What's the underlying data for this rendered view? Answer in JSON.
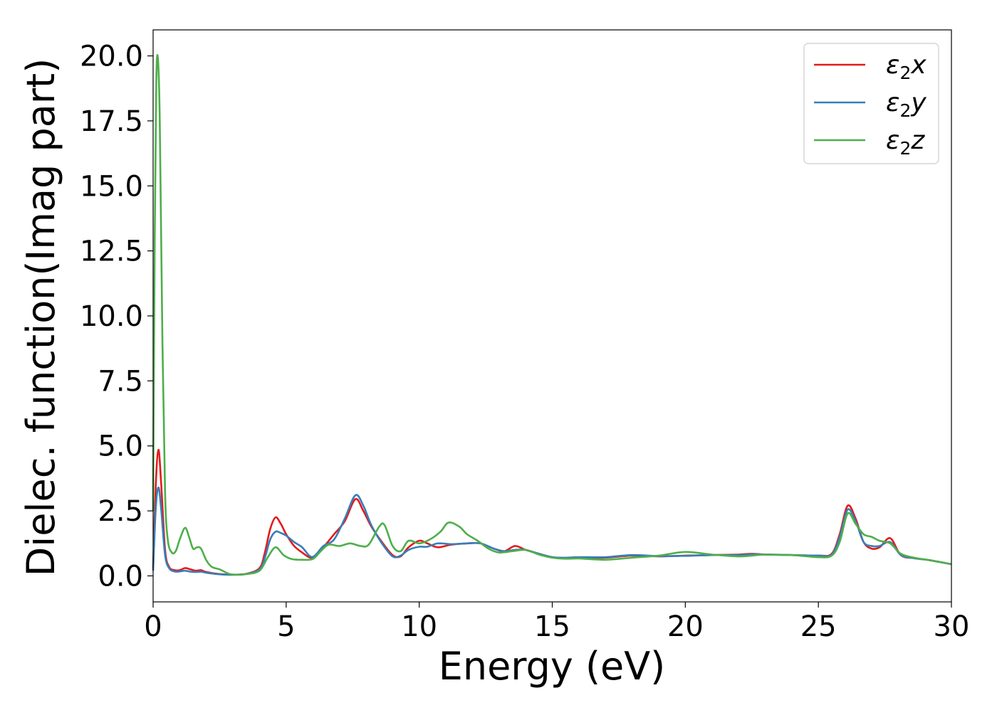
{
  "chart_data": {
    "type": "line",
    "title": "",
    "xlabel": "Energy (eV)",
    "ylabel": "Dielec. function(Imag part)",
    "xlim": [
      0,
      30
    ],
    "ylim": [
      -1.0,
      21.0
    ],
    "xticks": [
      0,
      5,
      10,
      15,
      20,
      25,
      30
    ],
    "xtick_labels": [
      "0",
      "5",
      "10",
      "15",
      "20",
      "25",
      "30"
    ],
    "yticks": [
      0.0,
      2.5,
      5.0,
      7.5,
      10.0,
      12.5,
      15.0,
      17.5,
      20.0
    ],
    "ytick_labels": [
      "0.0",
      "2.5",
      "5.0",
      "7.5",
      "10.0",
      "12.5",
      "15.0",
      "17.5",
      "20.0"
    ],
    "grid": false,
    "legend_position": "top-right",
    "series": [
      {
        "name": "ε₂x",
        "legend_base": "ε",
        "legend_sub": "2",
        "legend_suffix": "x",
        "color": "#e41a1c",
        "points": [
          [
            0,
            0.3
          ],
          [
            0.1,
            3.5
          ],
          [
            0.2,
            4.85
          ],
          [
            0.3,
            3.6
          ],
          [
            0.45,
            1.0
          ],
          [
            0.6,
            0.35
          ],
          [
            0.8,
            0.22
          ],
          [
            1.0,
            0.22
          ],
          [
            1.2,
            0.3
          ],
          [
            1.4,
            0.25
          ],
          [
            1.6,
            0.2
          ],
          [
            1.8,
            0.22
          ],
          [
            2.0,
            0.15
          ],
          [
            2.5,
            0.07
          ],
          [
            3.0,
            0.05
          ],
          [
            3.5,
            0.08
          ],
          [
            4.0,
            0.3
          ],
          [
            4.2,
            0.9
          ],
          [
            4.4,
            1.8
          ],
          [
            4.6,
            2.25
          ],
          [
            4.8,
            2.0
          ],
          [
            5.0,
            1.6
          ],
          [
            5.3,
            1.15
          ],
          [
            5.6,
            0.9
          ],
          [
            5.9,
            0.7
          ],
          [
            6.1,
            0.75
          ],
          [
            6.4,
            1.1
          ],
          [
            6.8,
            1.6
          ],
          [
            7.2,
            2.1
          ],
          [
            7.6,
            2.95
          ],
          [
            7.9,
            2.5
          ],
          [
            8.2,
            1.9
          ],
          [
            8.6,
            1.3
          ],
          [
            9.0,
            0.8
          ],
          [
            9.3,
            0.75
          ],
          [
            9.6,
            1.1
          ],
          [
            10.0,
            1.35
          ],
          [
            10.3,
            1.25
          ],
          [
            10.7,
            1.1
          ],
          [
            11.2,
            1.2
          ],
          [
            11.8,
            1.25
          ],
          [
            12.3,
            1.25
          ],
          [
            12.8,
            1.05
          ],
          [
            13.2,
            0.95
          ],
          [
            13.6,
            1.15
          ],
          [
            14.0,
            1.0
          ],
          [
            14.5,
            0.85
          ],
          [
            15.0,
            0.72
          ],
          [
            15.5,
            0.68
          ],
          [
            16.0,
            0.7
          ],
          [
            17.0,
            0.7
          ],
          [
            18.0,
            0.78
          ],
          [
            19.0,
            0.75
          ],
          [
            20.0,
            0.78
          ],
          [
            21.0,
            0.8
          ],
          [
            22.0,
            0.82
          ],
          [
            22.5,
            0.85
          ],
          [
            23.0,
            0.82
          ],
          [
            24.0,
            0.8
          ],
          [
            25.0,
            0.78
          ],
          [
            25.5,
            0.85
          ],
          [
            25.8,
            1.6
          ],
          [
            26.1,
            2.7
          ],
          [
            26.4,
            2.2
          ],
          [
            26.7,
            1.3
          ],
          [
            27.0,
            1.05
          ],
          [
            27.3,
            1.1
          ],
          [
            27.7,
            1.45
          ],
          [
            28.1,
            0.8
          ],
          [
            28.6,
            0.68
          ],
          [
            29.2,
            0.6
          ],
          [
            30.0,
            0.45
          ]
        ]
      },
      {
        "name": "ε₂y",
        "legend_base": "ε",
        "legend_sub": "2",
        "legend_suffix": "y",
        "color": "#377eb8",
        "points": [
          [
            0,
            0.2
          ],
          [
            0.1,
            2.6
          ],
          [
            0.2,
            3.4
          ],
          [
            0.3,
            2.6
          ],
          [
            0.45,
            0.8
          ],
          [
            0.6,
            0.3
          ],
          [
            0.8,
            0.17
          ],
          [
            1.0,
            0.17
          ],
          [
            1.2,
            0.2
          ],
          [
            1.4,
            0.16
          ],
          [
            1.6,
            0.15
          ],
          [
            1.8,
            0.16
          ],
          [
            2.0,
            0.12
          ],
          [
            2.5,
            0.06
          ],
          [
            3.0,
            0.04
          ],
          [
            3.5,
            0.07
          ],
          [
            4.0,
            0.25
          ],
          [
            4.2,
            0.7
          ],
          [
            4.4,
            1.4
          ],
          [
            4.6,
            1.7
          ],
          [
            4.8,
            1.65
          ],
          [
            5.0,
            1.55
          ],
          [
            5.3,
            1.3
          ],
          [
            5.6,
            1.1
          ],
          [
            5.9,
            0.75
          ],
          [
            6.1,
            0.8
          ],
          [
            6.4,
            1.15
          ],
          [
            6.8,
            1.4
          ],
          [
            7.2,
            2.2
          ],
          [
            7.6,
            3.1
          ],
          [
            7.9,
            2.7
          ],
          [
            8.2,
            1.95
          ],
          [
            8.6,
            1.25
          ],
          [
            9.0,
            0.75
          ],
          [
            9.3,
            0.78
          ],
          [
            9.6,
            1.0
          ],
          [
            10.0,
            1.12
          ],
          [
            10.3,
            1.12
          ],
          [
            10.7,
            1.25
          ],
          [
            11.2,
            1.22
          ],
          [
            11.8,
            1.25
          ],
          [
            12.3,
            1.25
          ],
          [
            12.8,
            1.05
          ],
          [
            13.2,
            0.95
          ],
          [
            13.6,
            1.0
          ],
          [
            14.0,
            1.0
          ],
          [
            14.5,
            0.85
          ],
          [
            15.0,
            0.72
          ],
          [
            15.5,
            0.7
          ],
          [
            16.0,
            0.72
          ],
          [
            17.0,
            0.72
          ],
          [
            18.0,
            0.8
          ],
          [
            19.0,
            0.76
          ],
          [
            20.0,
            0.77
          ],
          [
            21.0,
            0.8
          ],
          [
            22.0,
            0.8
          ],
          [
            22.5,
            0.83
          ],
          [
            23.0,
            0.82
          ],
          [
            24.0,
            0.8
          ],
          [
            25.0,
            0.78
          ],
          [
            25.5,
            0.82
          ],
          [
            25.8,
            1.5
          ],
          [
            26.1,
            2.55
          ],
          [
            26.4,
            2.1
          ],
          [
            26.7,
            1.3
          ],
          [
            27.0,
            1.15
          ],
          [
            27.3,
            1.15
          ],
          [
            27.7,
            1.3
          ],
          [
            28.1,
            0.8
          ],
          [
            28.6,
            0.68
          ],
          [
            29.2,
            0.6
          ],
          [
            30.0,
            0.45
          ]
        ]
      },
      {
        "name": "ε₂z",
        "legend_base": "ε",
        "legend_sub": "2",
        "legend_suffix": "z",
        "color": "#4daf4a",
        "points": [
          [
            0,
            2.5
          ],
          [
            0.06,
            13.0
          ],
          [
            0.12,
            19.0
          ],
          [
            0.18,
            19.9
          ],
          [
            0.25,
            17.5
          ],
          [
            0.35,
            9.0
          ],
          [
            0.45,
            3.2
          ],
          [
            0.55,
            1.4
          ],
          [
            0.7,
            0.9
          ],
          [
            0.85,
            0.95
          ],
          [
            1.0,
            1.4
          ],
          [
            1.2,
            1.85
          ],
          [
            1.35,
            1.5
          ],
          [
            1.5,
            1.05
          ],
          [
            1.65,
            1.1
          ],
          [
            1.8,
            1.05
          ],
          [
            2.0,
            0.6
          ],
          [
            2.2,
            0.35
          ],
          [
            2.5,
            0.25
          ],
          [
            2.8,
            0.1
          ],
          [
            3.0,
            0.05
          ],
          [
            3.5,
            0.07
          ],
          [
            4.0,
            0.2
          ],
          [
            4.3,
            0.7
          ],
          [
            4.6,
            1.1
          ],
          [
            4.9,
            0.8
          ],
          [
            5.2,
            0.65
          ],
          [
            5.6,
            0.62
          ],
          [
            6.0,
            0.65
          ],
          [
            6.3,
            0.95
          ],
          [
            6.6,
            1.2
          ],
          [
            7.0,
            1.15
          ],
          [
            7.4,
            1.25
          ],
          [
            7.8,
            1.15
          ],
          [
            8.1,
            1.2
          ],
          [
            8.5,
            1.9
          ],
          [
            8.7,
            1.95
          ],
          [
            9.0,
            1.15
          ],
          [
            9.3,
            0.95
          ],
          [
            9.6,
            1.35
          ],
          [
            10.0,
            1.25
          ],
          [
            10.4,
            1.4
          ],
          [
            10.8,
            1.7
          ],
          [
            11.1,
            2.05
          ],
          [
            11.5,
            1.9
          ],
          [
            11.8,
            1.6
          ],
          [
            12.2,
            1.35
          ],
          [
            12.6,
            1.05
          ],
          [
            13.0,
            0.9
          ],
          [
            13.5,
            0.95
          ],
          [
            14.0,
            1.0
          ],
          [
            14.5,
            0.82
          ],
          [
            15.0,
            0.7
          ],
          [
            15.5,
            0.66
          ],
          [
            16.0,
            0.67
          ],
          [
            17.0,
            0.62
          ],
          [
            18.0,
            0.7
          ],
          [
            19.0,
            0.78
          ],
          [
            20.0,
            0.92
          ],
          [
            21.0,
            0.82
          ],
          [
            22.0,
            0.75
          ],
          [
            22.5,
            0.78
          ],
          [
            23.0,
            0.82
          ],
          [
            24.0,
            0.8
          ],
          [
            25.0,
            0.72
          ],
          [
            25.5,
            0.78
          ],
          [
            25.8,
            1.3
          ],
          [
            26.1,
            2.4
          ],
          [
            26.4,
            2.0
          ],
          [
            26.7,
            1.6
          ],
          [
            27.0,
            1.5
          ],
          [
            27.3,
            1.35
          ],
          [
            27.7,
            1.25
          ],
          [
            28.1,
            0.85
          ],
          [
            28.6,
            0.7
          ],
          [
            29.2,
            0.6
          ],
          [
            30.0,
            0.45
          ]
        ]
      }
    ]
  }
}
